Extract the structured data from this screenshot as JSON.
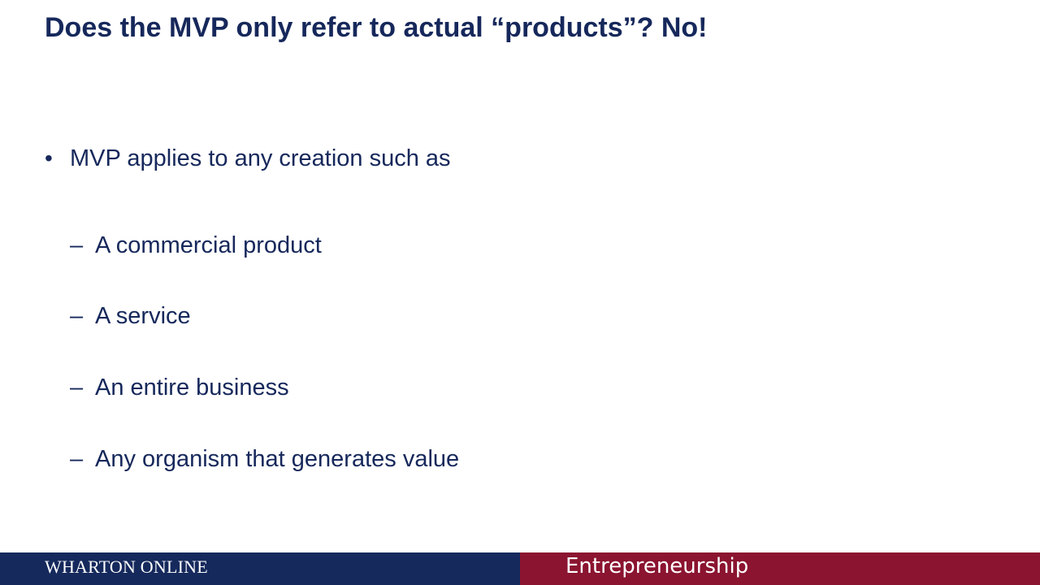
{
  "slide": {
    "title": "Does the MVP only refer to actual “products”? No!",
    "bullet": {
      "marker": "•",
      "text": "MVP applies to any creation such as"
    },
    "sub_marker": "–",
    "sub_items": [
      "A commercial product",
      "A service",
      "An entire business",
      "Any organism that generates value"
    ]
  },
  "footer": {
    "brand": "WHARTON ONLINE",
    "course": "Entrepreneurship",
    "colors": {
      "left_band": "#15295c",
      "right_band": "#8b1430"
    }
  },
  "colors": {
    "text": "#16285b",
    "background": "#ffffff"
  }
}
